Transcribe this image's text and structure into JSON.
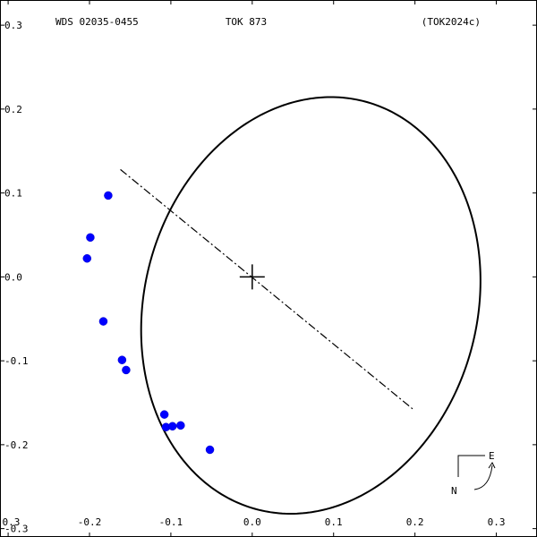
{
  "header": {
    "left": "WDS 02035-0455",
    "center": "TOK 873",
    "right": "(TOK2024c)"
  },
  "chart_data": {
    "type": "scatter",
    "title": "",
    "xlabel": "",
    "ylabel": "",
    "xlim": [
      -0.31,
      0.35
    ],
    "ylim": [
      -0.31,
      0.33
    ],
    "grid": false,
    "x_ticks": [
      -0.3,
      -0.2,
      -0.1,
      0.0,
      0.1,
      0.2,
      0.3
    ],
    "y_ticks": [
      0.3,
      0.2,
      0.1,
      0.0,
      -0.1,
      -0.2,
      -0.3
    ],
    "x_tick_labels": [
      "-0.3",
      "-0.2",
      "-0.1",
      "0.0",
      "0.1",
      "0.2",
      "0.3"
    ],
    "y_tick_labels": [
      "0.3",
      "0.2",
      "0.1",
      "0.0",
      "-0.1",
      "-0.2",
      "-0.3"
    ],
    "orbit_ellipse": {
      "center": [
        0.072,
        -0.034
      ],
      "semi_major": 0.252,
      "semi_minor": 0.204,
      "tilt_deg": 73
    },
    "line_of_nodes": [
      [
        -0.162,
        0.128
      ],
      [
        0.198,
        -0.158
      ]
    ],
    "primary_star": [
      0.0,
      0.0
    ],
    "observations": [
      {
        "x": -0.177,
        "y": 0.097
      },
      {
        "x": -0.199,
        "y": 0.047
      },
      {
        "x": -0.203,
        "y": 0.022
      },
      {
        "x": -0.183,
        "y": -0.053
      },
      {
        "x": -0.16,
        "y": -0.099
      },
      {
        "x": -0.155,
        "y": -0.111
      },
      {
        "x": -0.108,
        "y": -0.164
      },
      {
        "x": -0.106,
        "y": -0.179
      },
      {
        "x": -0.098,
        "y": -0.178
      },
      {
        "x": -0.088,
        "y": -0.177
      },
      {
        "x": -0.052,
        "y": -0.206
      }
    ],
    "point_color": "#0000ff",
    "line_color": "#000000",
    "orientation": {
      "east_label": "E",
      "north_label": "N"
    }
  }
}
